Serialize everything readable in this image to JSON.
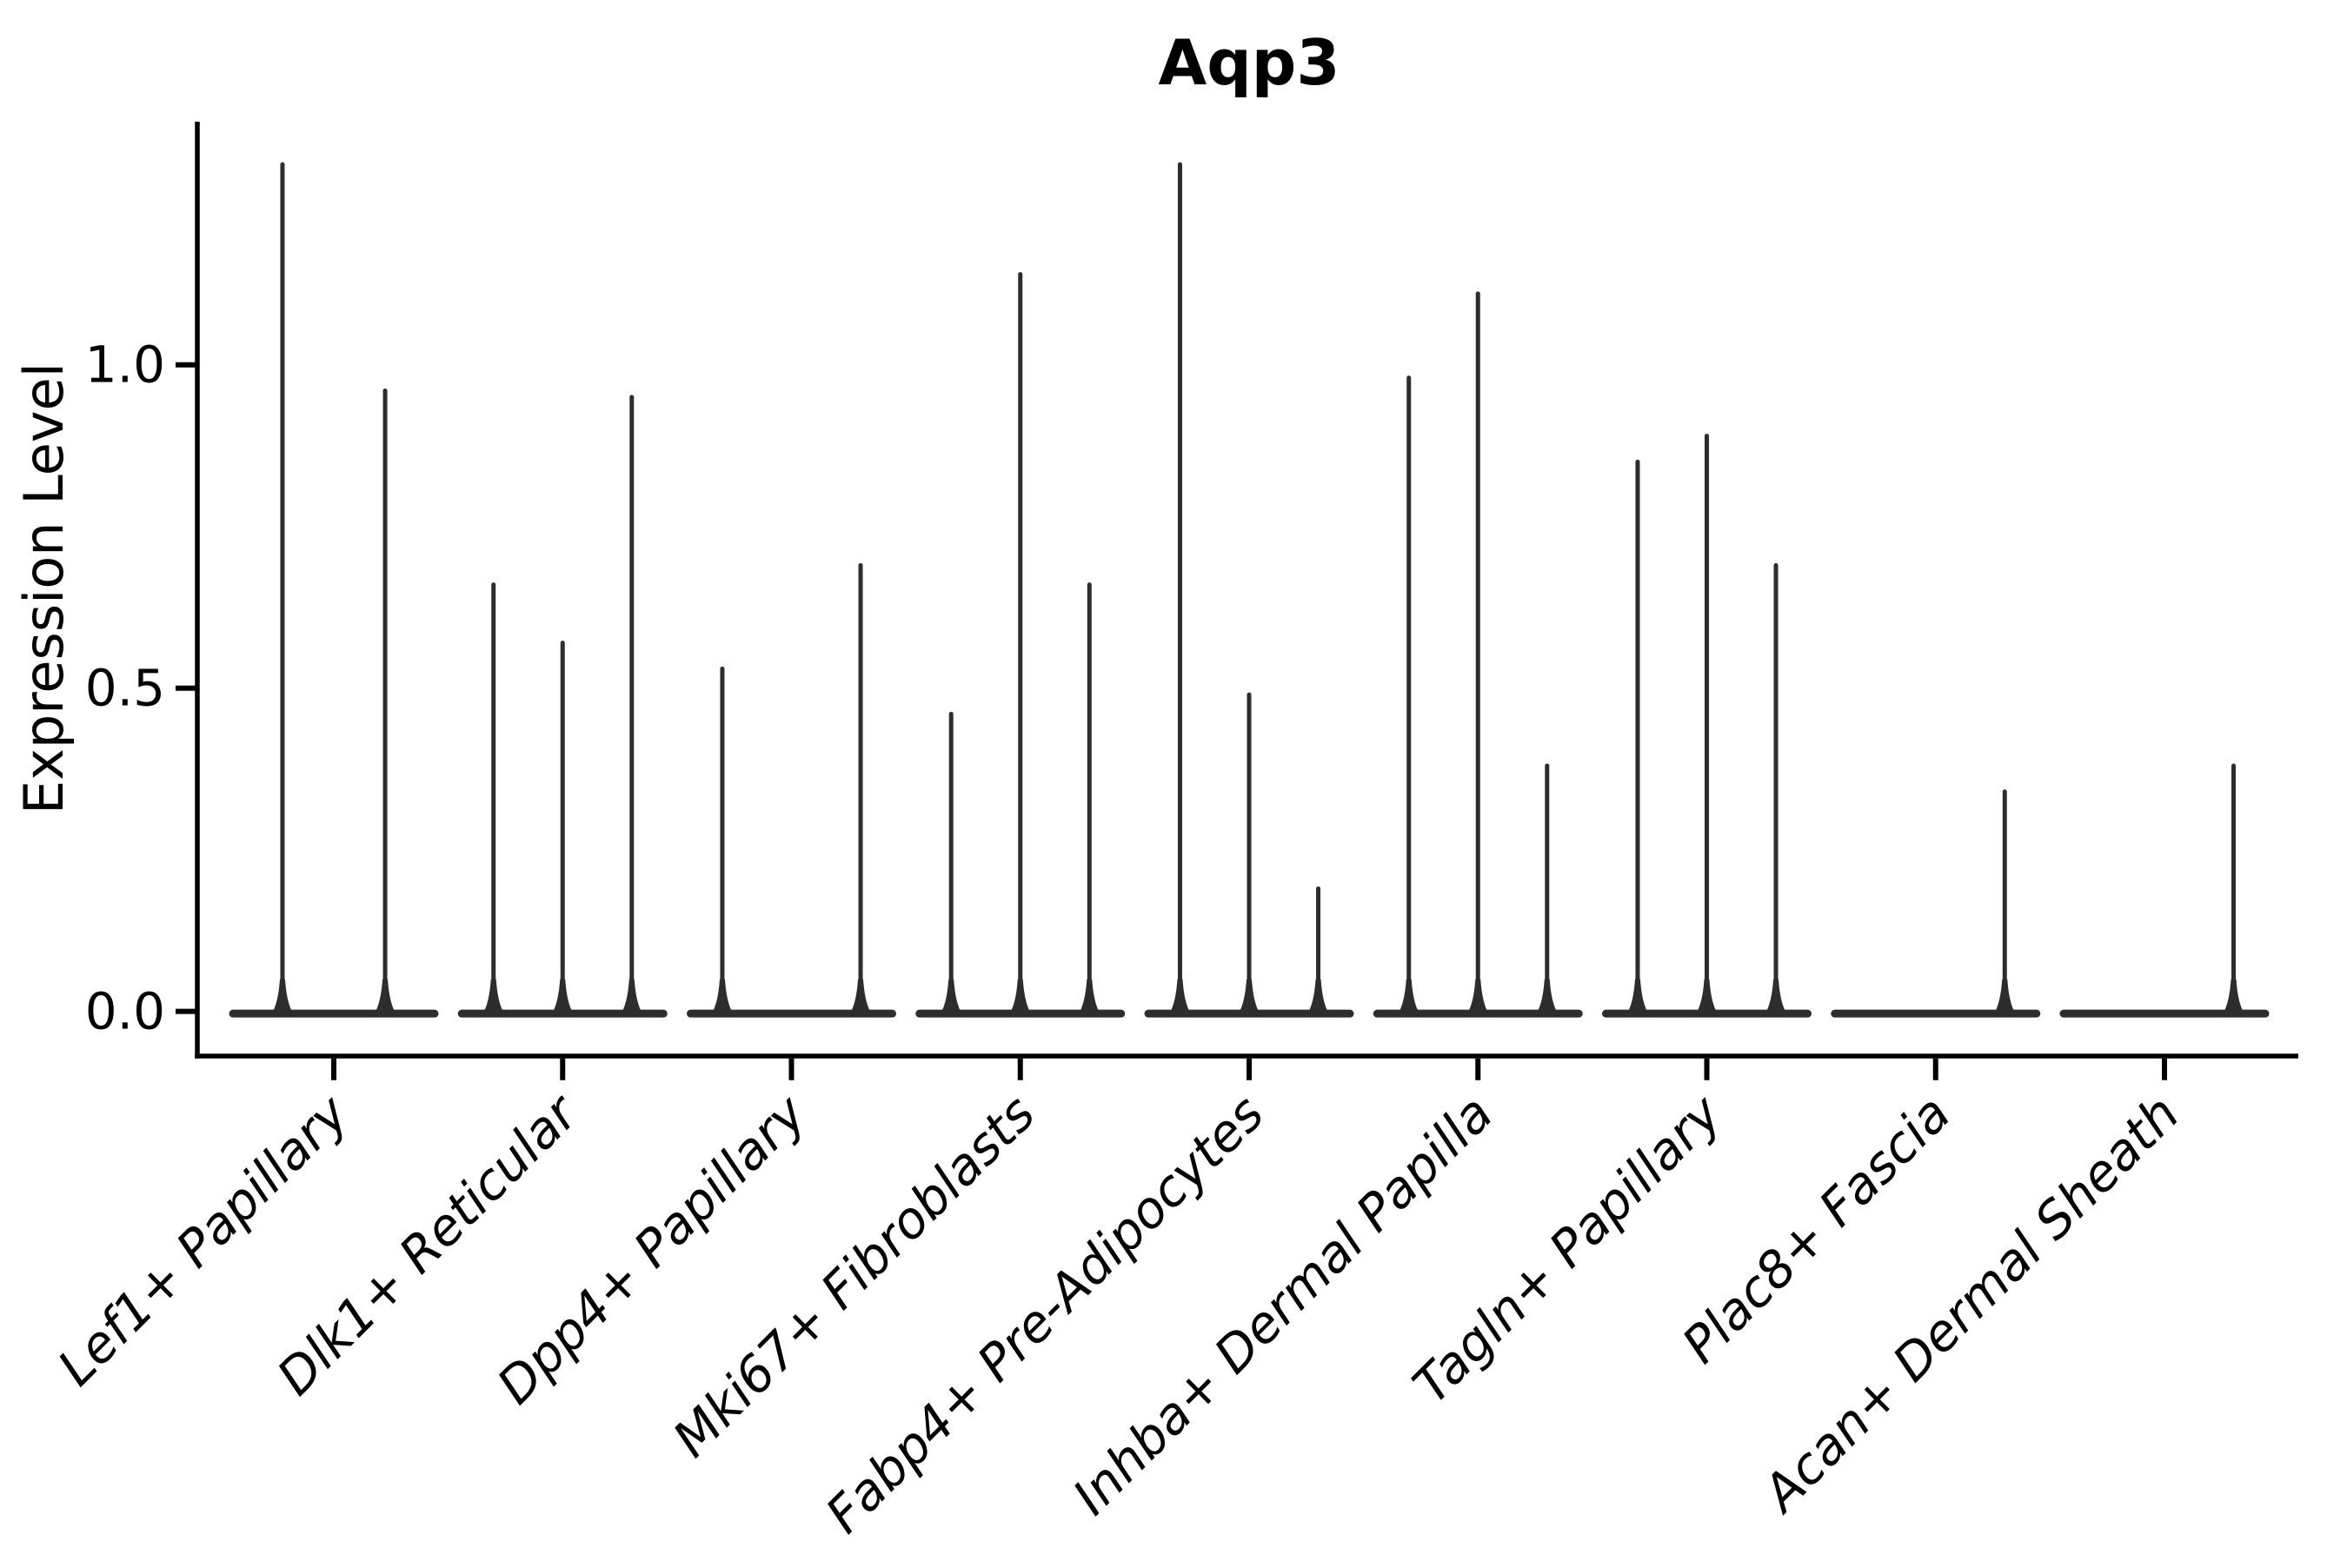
{
  "chart_data": {
    "type": "violin",
    "title": "Aqp3",
    "ylabel": "Expression Level",
    "xlabel": "",
    "grid": false,
    "legend": false,
    "ylim": [
      -0.069,
      1.376
    ],
    "yticks": [
      {
        "value": 0.0,
        "label": "0.0"
      },
      {
        "value": 0.5,
        "label": "0.5"
      },
      {
        "value": 1.0,
        "label": "1.0"
      }
    ],
    "categories": [
      "Lef1+ Papillary",
      "Dlk1+ Reticular",
      "Dpp4+ Papillary",
      "Mki67+ Fibroblasts",
      "Fabp4+ Pre-Adipocytes",
      "Inhba+ Dermal Papilla",
      "Tagln+ Papillary",
      "Plac8+ Fascia",
      "Acan+ Dermal Sheath"
    ],
    "groups": [
      {
        "category": "Lef1+ Papillary",
        "violins": [
          {
            "offset_frac": -0.49,
            "max": 1.31
          },
          {
            "offset_frac": 0.49,
            "max": 0.96
          }
        ]
      },
      {
        "category": "Dlk1+ Reticular",
        "violins": [
          {
            "offset_frac": -0.66,
            "max": 0.66
          },
          {
            "offset_frac": 0.0,
            "max": 0.57
          },
          {
            "offset_frac": 0.66,
            "max": 0.95
          }
        ]
      },
      {
        "category": "Dpp4+ Papillary",
        "violins": [
          {
            "offset_frac": -0.66,
            "max": 0.53
          },
          {
            "offset_frac": 0.66,
            "max": 0.69
          }
        ]
      },
      {
        "category": "Mki67+ Fibroblasts",
        "violins": [
          {
            "offset_frac": -0.66,
            "max": 0.46
          },
          {
            "offset_frac": 0.0,
            "max": 1.14
          },
          {
            "offset_frac": 0.66,
            "max": 0.66
          }
        ]
      },
      {
        "category": "Fabp4+ Pre-Adipocytes",
        "violins": [
          {
            "offset_frac": -0.66,
            "max": 1.31
          },
          {
            "offset_frac": 0.0,
            "max": 0.49
          },
          {
            "offset_frac": 0.66,
            "max": 0.19
          }
        ]
      },
      {
        "category": "Inhba+ Dermal Papilla",
        "violins": [
          {
            "offset_frac": -0.66,
            "max": 0.98
          },
          {
            "offset_frac": 0.0,
            "max": 1.11
          },
          {
            "offset_frac": 0.66,
            "max": 0.38
          }
        ]
      },
      {
        "category": "Tagln+ Papillary",
        "violins": [
          {
            "offset_frac": -0.66,
            "max": 0.85
          },
          {
            "offset_frac": 0.0,
            "max": 0.89
          },
          {
            "offset_frac": 0.66,
            "max": 0.69
          }
        ]
      },
      {
        "category": "Plac8+ Fascia",
        "violins": [
          {
            "offset_frac": 0.66,
            "max": 0.34
          }
        ]
      },
      {
        "category": "Acan+ Dermal Sheath",
        "violins": [
          {
            "offset_frac": 0.66,
            "max": 0.38
          }
        ]
      }
    ],
    "colors": {
      "violin": "#2d2d2d",
      "spine": "#000000",
      "tick": "#000000",
      "text": "#000000",
      "background": "#ffffff"
    }
  }
}
